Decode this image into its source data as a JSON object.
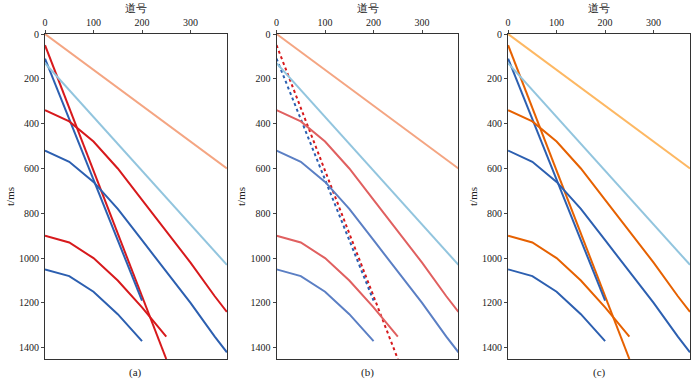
{
  "chart_data": [
    {
      "type": "line",
      "title": "(a)",
      "xlabel": "道号",
      "ylabel": "t/ms",
      "x": [
        0,
        50,
        100,
        150,
        200,
        250,
        300,
        350,
        375
      ],
      "xlim": [
        0,
        375
      ],
      "ylim": [
        0,
        1450
      ],
      "xticks": [
        0,
        100,
        200,
        300
      ],
      "yticks": [
        0,
        200,
        400,
        600,
        800,
        1000,
        1200,
        1400
      ],
      "grid": false,
      "series": [
        {
          "color": "#d7191c",
          "line_style": "solid",
          "values": [
            50,
            330,
            610,
            890,
            1170,
            1450,
            null,
            null,
            null
          ]
        },
        {
          "color": "#2c5fb0",
          "line_style": "solid",
          "values": [
            110,
            380,
            650,
            920,
            1190,
            null,
            null,
            null,
            null
          ]
        },
        {
          "color": "#f4a582",
          "line_style": "solid",
          "values": [
            0,
            80,
            160,
            240,
            320,
            400,
            480,
            560,
            600
          ]
        },
        {
          "color": "#92c5de",
          "line_style": "solid",
          "values": [
            130,
            250,
            370,
            490,
            610,
            730,
            850,
            970,
            1030
          ]
        },
        {
          "color": "#d7191c",
          "line_style": "solid",
          "values": [
            340,
            390,
            480,
            600,
            740,
            880,
            1020,
            1170,
            1240
          ]
        },
        {
          "color": "#2c5fb0",
          "line_style": "solid",
          "values": [
            520,
            570,
            660,
            780,
            920,
            1060,
            1200,
            1350,
            1420
          ]
        },
        {
          "color": "#d7191c",
          "line_style": "solid",
          "values": [
            900,
            930,
            1000,
            1100,
            1220,
            1350,
            null,
            null,
            null
          ]
        },
        {
          "color": "#2c5fb0",
          "line_style": "solid",
          "values": [
            1050,
            1080,
            1150,
            1250,
            1370,
            null,
            null,
            null,
            null
          ]
        }
      ]
    },
    {
      "type": "line",
      "title": "(b)",
      "xlabel": "道号",
      "ylabel": "t/ms",
      "x": [
        0,
        50,
        100,
        150,
        200,
        250,
        300,
        350,
        375
      ],
      "xlim": [
        0,
        375
      ],
      "ylim": [
        0,
        1450
      ],
      "xticks": [
        0,
        100,
        200,
        300
      ],
      "yticks": [
        0,
        200,
        400,
        600,
        800,
        1000,
        1200,
        1400
      ],
      "grid": false,
      "series": [
        {
          "color": "#d7191c",
          "line_style": "dot",
          "values": [
            50,
            330,
            610,
            890,
            1170,
            1450,
            null,
            null,
            null
          ]
        },
        {
          "color": "#2c5fb0",
          "line_style": "dot",
          "values": [
            110,
            380,
            650,
            920,
            1190,
            null,
            null,
            null,
            null
          ]
        },
        {
          "color": "#f4a582",
          "line_style": "solid",
          "values": [
            0,
            80,
            160,
            240,
            320,
            400,
            480,
            560,
            600
          ]
        },
        {
          "color": "#92c5de",
          "line_style": "solid",
          "values": [
            130,
            250,
            370,
            490,
            610,
            730,
            850,
            970,
            1030
          ]
        },
        {
          "color": "#e06060",
          "line_style": "solid",
          "values": [
            340,
            390,
            480,
            600,
            740,
            880,
            1020,
            1170,
            1240
          ]
        },
        {
          "color": "#5b7fc4",
          "line_style": "solid",
          "values": [
            520,
            570,
            660,
            780,
            920,
            1060,
            1200,
            1350,
            1420
          ]
        },
        {
          "color": "#e06060",
          "line_style": "solid",
          "values": [
            900,
            930,
            1000,
            1100,
            1220,
            1350,
            null,
            null,
            null
          ]
        },
        {
          "color": "#5b7fc4",
          "line_style": "solid",
          "values": [
            1050,
            1080,
            1150,
            1250,
            1370,
            null,
            null,
            null,
            null
          ]
        }
      ]
    },
    {
      "type": "line",
      "title": "(c)",
      "xlabel": "道号",
      "ylabel": "t/ms",
      "x": [
        0,
        50,
        100,
        150,
        200,
        250,
        300,
        350,
        375
      ],
      "xlim": [
        0,
        375
      ],
      "ylim": [
        0,
        1450
      ],
      "xticks": [
        0,
        100,
        200,
        300
      ],
      "yticks": [
        0,
        200,
        400,
        600,
        800,
        1000,
        1200,
        1400
      ],
      "grid": false,
      "series": [
        {
          "color": "#e66101",
          "line_style": "solid",
          "values": [
            50,
            330,
            610,
            890,
            1170,
            1450,
            null,
            null,
            null
          ]
        },
        {
          "color": "#2c5fb0",
          "line_style": "solid",
          "values": [
            110,
            380,
            650,
            920,
            1190,
            null,
            null,
            null,
            null
          ]
        },
        {
          "color": "#fdb863",
          "line_style": "solid",
          "values": [
            0,
            80,
            160,
            240,
            320,
            400,
            480,
            560,
            600
          ]
        },
        {
          "color": "#92c5de",
          "line_style": "solid",
          "values": [
            130,
            250,
            370,
            490,
            610,
            730,
            850,
            970,
            1030
          ]
        },
        {
          "color": "#e66101",
          "line_style": "solid",
          "values": [
            340,
            390,
            480,
            600,
            740,
            880,
            1020,
            1170,
            1240
          ]
        },
        {
          "color": "#2c5fb0",
          "line_style": "solid",
          "values": [
            520,
            570,
            660,
            780,
            920,
            1060,
            1200,
            1350,
            1420
          ]
        },
        {
          "color": "#e66101",
          "line_style": "solid",
          "values": [
            900,
            930,
            1000,
            1100,
            1220,
            1350,
            null,
            null,
            null
          ]
        },
        {
          "color": "#2c5fb0",
          "line_style": "solid",
          "values": [
            1050,
            1080,
            1150,
            1250,
            1370,
            null,
            null,
            null,
            null
          ]
        }
      ]
    }
  ]
}
